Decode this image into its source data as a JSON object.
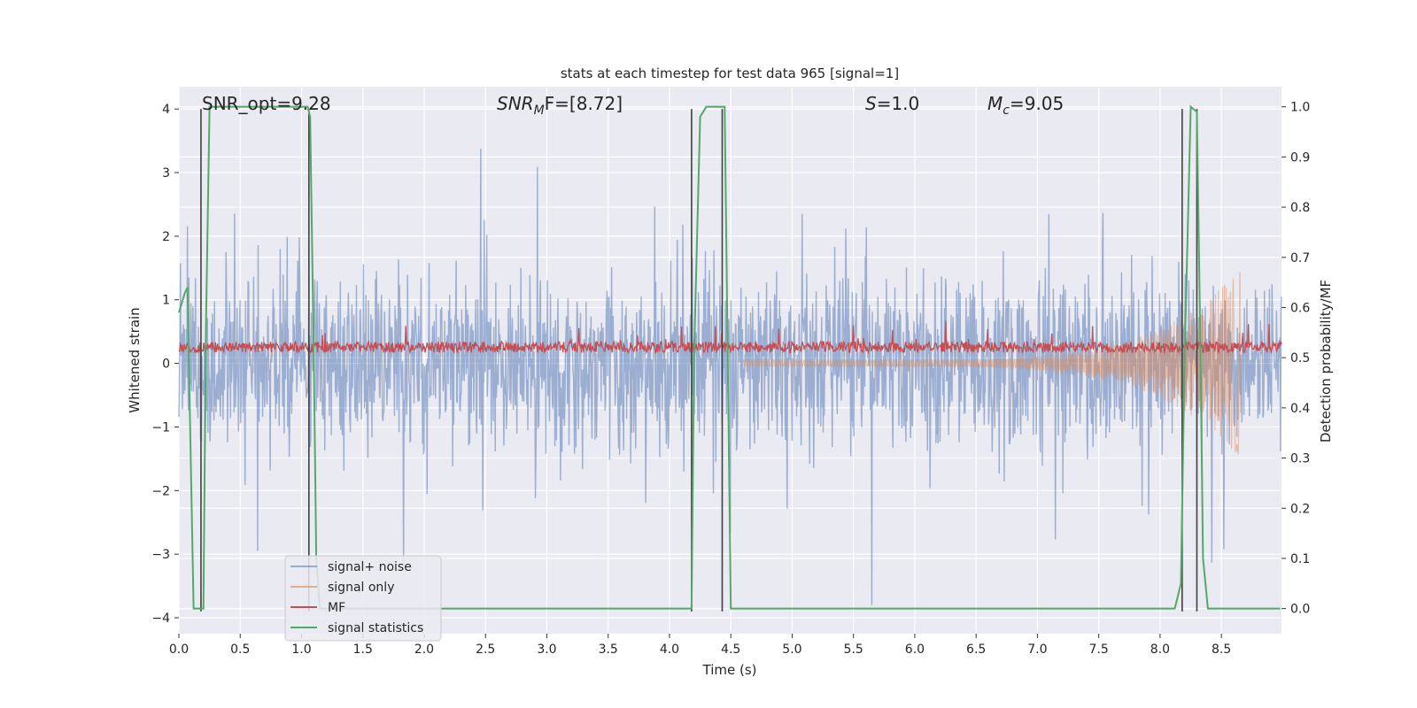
{
  "chart_data": {
    "type": "line",
    "title": "stats at each timestep for test data 965 [signal=1]",
    "xlabel": "Time (s)",
    "ylabel": "Whitened strain",
    "y2label": "Detection probability/MF",
    "xlim": [
      0.0,
      8.99
    ],
    "ylim": [
      -4.25,
      4.35
    ],
    "y2lim": [
      -0.05,
      1.04
    ],
    "x_ticks": [
      "0.0",
      "0.5",
      "1.0",
      "1.5",
      "2.0",
      "2.5",
      "3.0",
      "3.5",
      "4.0",
      "4.5",
      "5.0",
      "5.5",
      "6.0",
      "6.5",
      "7.0",
      "7.5",
      "8.0",
      "8.5"
    ],
    "y_ticks": [
      "4",
      "3",
      "2",
      "1",
      "0",
      "−1",
      "−2",
      "−3",
      "−4"
    ],
    "y2_ticks": [
      "1.0",
      "0.9",
      "0.8",
      "0.7",
      "0.6",
      "0.5",
      "0.4",
      "0.3",
      "0.2",
      "0.1",
      "0.0"
    ],
    "grid": true,
    "legend_position": "lower-left",
    "annotations": {
      "snr_opt": "SNR_opt=9.28",
      "snr_mf": "SNR",
      "snr_mf_sub": "M",
      "snr_mf_rest": "F=[8.72]",
      "s_italic": "S",
      "s_rest": "=1.0",
      "mc_italic": "M",
      "mc_sub": "c",
      "mc_rest": "=9.05"
    },
    "series": [
      {
        "name": "signal+ noise",
        "color": "#4c72b0",
        "axis": "left",
        "description_values": {
          "typical_range": [
            -2.0,
            2.0
          ],
          "peak_max": 3.75,
          "peak_min": -3.8
        }
      },
      {
        "name": "signal only",
        "color": "#dd8452",
        "axis": "left",
        "chirp": {
          "start_time": 4.6,
          "end_time": 8.66,
          "amp_start": 0.05,
          "amp_peak": 1.5
        }
      },
      {
        "name": "MF",
        "color": "#c44e52",
        "axis": "right",
        "baseline": 0.52,
        "peak": 0.57
      },
      {
        "name": "signal statistics",
        "color": "#55a868",
        "axis": "right",
        "x": [
          0.0,
          0.05,
          0.07,
          0.12,
          0.15,
          0.17,
          0.2,
          0.22,
          0.25,
          0.3,
          1.05,
          1.07,
          1.1,
          1.12,
          1.15,
          4.18,
          4.2,
          4.25,
          4.3,
          4.45,
          4.5,
          8.12,
          8.17,
          8.2,
          8.25,
          8.3,
          8.33,
          8.35,
          8.39,
          8.98
        ],
        "y": [
          0.59,
          0.63,
          0.64,
          0.0,
          0.0,
          0.0,
          0.0,
          0.55,
          1.0,
          1.0,
          1.0,
          0.98,
          0.5,
          0.1,
          0.0,
          0.0,
          0.5,
          0.98,
          1.0,
          1.0,
          0.0,
          0.0,
          0.05,
          0.5,
          1.0,
          0.99,
          0.5,
          0.1,
          0.0,
          0.0
        ]
      }
    ],
    "event_markers": [
      {
        "x": 0.18,
        "y_top": 4.0,
        "y_bottom": -3.9
      },
      {
        "x": 1.06,
        "y_top": 4.0,
        "y_bottom": -3.9
      },
      {
        "x": 4.18,
        "y_top": 4.0,
        "y_bottom": -3.9
      },
      {
        "x": 4.43,
        "y_top": 4.0,
        "y_bottom": -3.9
      },
      {
        "x": 8.18,
        "y_top": 4.0,
        "y_bottom": -3.9
      },
      {
        "x": 8.3,
        "y_top": 4.0,
        "y_bottom": -3.9
      }
    ]
  },
  "colors": {
    "axes_bg": "#eaeaf2",
    "grid": "#ffffff",
    "marker": "#404040",
    "text": "#262626"
  }
}
